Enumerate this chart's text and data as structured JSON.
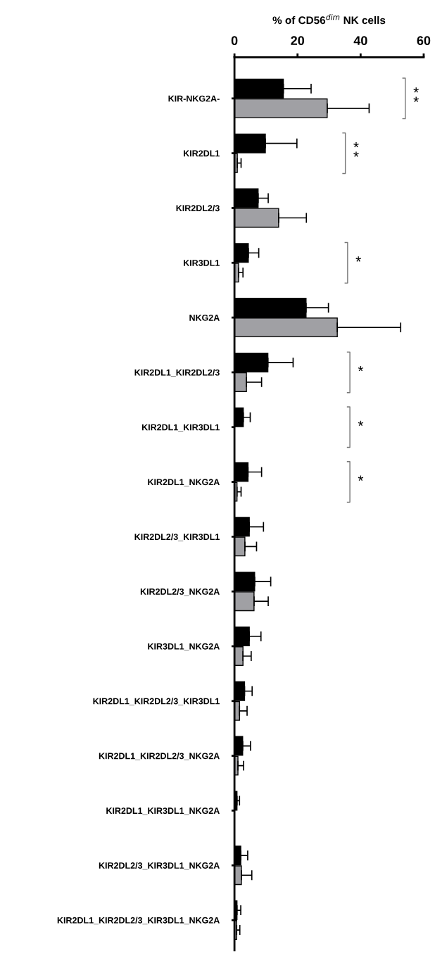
{
  "chart_data": {
    "type": "bar",
    "orientation": "horizontal",
    "xlabel": "% of CD56$^{dim}$ NK cells",
    "categories": [
      "KIR-NKG2A-",
      "KIR2DL1",
      "KIR2DL2/3",
      "KIR3DL1",
      "NKG2A",
      "KIR2DL1_KIR2DL2/3",
      "KIR2DL1_KIR3DL1",
      "KIR2DL1_NKG2A",
      "KIR2DL2/3_KIR3DL1",
      "KIR2DL2/3_NKG2A",
      "KIR3DL1_NKG2A",
      "KIR2DL1_KIR2DL2/3_KIR3DL1",
      "KIR2DL1_KIR2DL2/3_NKG2A",
      "KIR2DL1_KIR3DL1_NKG2A",
      "KIR2DL2/3_KIR3DL1_NKG2A",
      "KIR2DL1_KIR2DL2/3_KIR3DL1_NKG2A"
    ],
    "series": [
      {
        "color": "#000000",
        "values": [
          15.5,
          9.8,
          7.5,
          4.4,
          22.7,
          10.6,
          2.8,
          4.3,
          4.7,
          6.4,
          4.7,
          3.2,
          2.6,
          0.8,
          2.0,
          0.8
        ],
        "errors": [
          8.8,
          10.0,
          3.2,
          3.3,
          7.1,
          8.0,
          2.2,
          4.3,
          4.5,
          5.1,
          3.7,
          2.4,
          2.5,
          0.8,
          2.2,
          1.2
        ]
      },
      {
        "color": "#a0a0a4",
        "values": [
          29.4,
          0.9,
          14.0,
          1.3,
          32.6,
          3.8,
          null,
          0.8,
          3.3,
          6.2,
          2.7,
          1.6,
          1.1,
          null,
          2.2,
          0.7
        ],
        "errors": [
          13.3,
          1.2,
          8.8,
          1.4,
          20.1,
          4.8,
          null,
          1.3,
          3.7,
          4.5,
          2.6,
          2.4,
          1.8,
          null,
          3.3,
          1.0
        ]
      }
    ],
    "xlim": [
      0,
      60
    ],
    "xticks": [
      0,
      20,
      40,
      60
    ],
    "grid": false,
    "legend": false,
    "annotations": [
      "**",
      "**",
      "*",
      "*",
      "*",
      "*"
    ]
  }
}
